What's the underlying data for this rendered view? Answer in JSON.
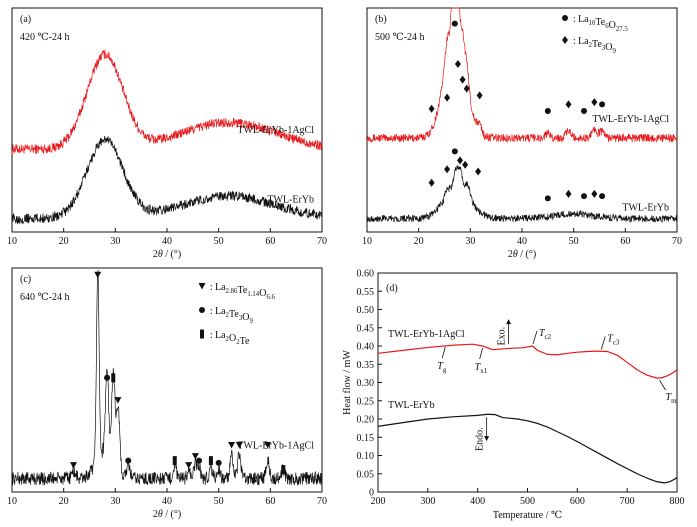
{
  "colors": {
    "red": "#e8191c",
    "black": "#111111"
  },
  "chart_data": [
    {
      "id": "a",
      "type": "line",
      "label": "(a)",
      "condition": "420 ℃-24 h",
      "xlabel_prefix": "2",
      "xlabel_theta": "θ",
      "xlabel_suffix": " / (°)",
      "xlim": [
        10,
        70
      ],
      "xticks": [
        10,
        20,
        30,
        40,
        50,
        60,
        70
      ],
      "series": [
        {
          "name": "TWL-ErYb-1AgCl",
          "color": "#e8191c",
          "baseline": 0.37,
          "noise": 0.022,
          "peaks": [
            {
              "x": 28,
              "h": 0.42,
              "w": 3.5
            },
            {
              "x": 52,
              "h": 0.12,
              "w": 9
            }
          ]
        },
        {
          "name": "TWL-ErYb",
          "color": "#111111",
          "baseline": 0.06,
          "noise": 0.022,
          "peaks": [
            {
              "x": 28,
              "h": 0.35,
              "w": 3.5
            },
            {
              "x": 52,
              "h": 0.1,
              "w": 9
            }
          ]
        }
      ]
    },
    {
      "id": "b",
      "type": "line",
      "label": "(b)",
      "condition": "500 ℃-24 h",
      "xlabel_prefix": "2",
      "xlabel_theta": "θ",
      "xlabel_suffix": " / (°)",
      "xlim": [
        10,
        70
      ],
      "xticks": [
        10,
        20,
        30,
        40,
        50,
        60,
        70
      ],
      "legend": [
        {
          "marker": "circle",
          "text": "La10Te6O27.5",
          "main": "La",
          "sub1": "10",
          "mid": "Te",
          "sub2": "6",
          "end": "O",
          "sub3": "27.5"
        },
        {
          "marker": "diamond",
          "text": "La2Te3O9",
          "main": "La",
          "sub1": "2",
          "mid": "Te",
          "sub2": "3",
          "end": "O",
          "sub3": "9"
        }
      ],
      "series": [
        {
          "name": "TWL-ErYb-1AgCl",
          "color": "#e8191c",
          "baseline": 0.42,
          "noise": 0.018,
          "peaks": [
            {
              "x": 27,
              "h": 0.5,
              "w": 2
            },
            {
              "x": 26.8,
              "h": 0.52,
              "w": 0.3
            },
            {
              "x": 27.6,
              "h": 0.2,
              "w": 0.3
            },
            {
              "x": 28.5,
              "h": 0.1,
              "w": 0.3
            },
            {
              "x": 29.3,
              "h": 0.08,
              "w": 0.4
            },
            {
              "x": 25.5,
              "h": 0.06,
              "w": 0.4
            },
            {
              "x": 31.8,
              "h": 0.04,
              "w": 0.4
            },
            {
              "x": 45,
              "h": 0.02,
              "w": 0.5
            },
            {
              "x": 49,
              "h": 0.03,
              "w": 0.5
            },
            {
              "x": 54,
              "h": 0.04,
              "w": 0.5
            },
            {
              "x": 55.5,
              "h": 0.03,
              "w": 0.5
            }
          ]
        },
        {
          "name": "TWL-ErYb",
          "color": "#111111",
          "baseline": 0.06,
          "noise": 0.016,
          "peaks": [
            {
              "x": 27.5,
              "h": 0.14,
              "w": 2.5
            },
            {
              "x": 27.3,
              "h": 0.08,
              "w": 0.5
            },
            {
              "x": 28.2,
              "h": 0.06,
              "w": 0.4
            },
            {
              "x": 29.5,
              "h": 0.05,
              "w": 0.4
            },
            {
              "x": 25.5,
              "h": 0.03,
              "w": 0.4
            },
            {
              "x": 50,
              "h": 0.02,
              "w": 4
            }
          ]
        }
      ],
      "annotations": [
        {
          "marker": "circle",
          "x": 27,
          "y": 0.93
        },
        {
          "marker": "diamond",
          "x": 27.6,
          "y": 0.75
        },
        {
          "marker": "diamond",
          "x": 28.5,
          "y": 0.68
        },
        {
          "marker": "diamond",
          "x": 29.3,
          "y": 0.64
        },
        {
          "marker": "diamond",
          "x": 31.8,
          "y": 0.61
        },
        {
          "marker": "diamond",
          "x": 25.5,
          "y": 0.6
        },
        {
          "marker": "diamond",
          "x": 22.5,
          "y": 0.55
        },
        {
          "marker": "circle",
          "x": 45,
          "y": 0.54
        },
        {
          "marker": "diamond",
          "x": 49,
          "y": 0.57
        },
        {
          "marker": "circle",
          "x": 52,
          "y": 0.54
        },
        {
          "marker": "diamond",
          "x": 54,
          "y": 0.58
        },
        {
          "marker": "circle",
          "x": 55.5,
          "y": 0.57
        },
        {
          "marker": "circle",
          "x": 27,
          "y": 0.36
        },
        {
          "marker": "diamond",
          "x": 28,
          "y": 0.32
        },
        {
          "marker": "diamond",
          "x": 29,
          "y": 0.3
        },
        {
          "marker": "diamond",
          "x": 31.5,
          "y": 0.27
        },
        {
          "marker": "diamond",
          "x": 25.5,
          "y": 0.28
        },
        {
          "marker": "diamond",
          "x": 22.5,
          "y": 0.22
        },
        {
          "marker": "circle",
          "x": 45,
          "y": 0.15
        },
        {
          "marker": "diamond",
          "x": 49,
          "y": 0.17
        },
        {
          "marker": "circle",
          "x": 52,
          "y": 0.16
        },
        {
          "marker": "diamond",
          "x": 54,
          "y": 0.17
        },
        {
          "marker": "circle",
          "x": 55.5,
          "y": 0.16
        }
      ]
    },
    {
      "id": "c",
      "type": "line",
      "label": "(c)",
      "condition": "640 ℃-24 h",
      "xlabel_prefix": "2",
      "xlabel_theta": "θ",
      "xlabel_suffix": " / (°)",
      "xlim": [
        10,
        70
      ],
      "xticks": [
        10,
        20,
        30,
        40,
        50,
        60,
        70
      ],
      "legend": [
        {
          "marker": "triangle",
          "text": "La2.86Te1.14O6.6",
          "main": "La",
          "sub1": "2.86",
          "mid": "Te",
          "sub2": "1.14",
          "end": "O",
          "sub3": "6.6"
        },
        {
          "marker": "circle",
          "text": "La2Te3O9",
          "main": "La",
          "sub1": "2",
          "mid": "Te",
          "sub2": "3",
          "end": "O",
          "sub3": "9"
        },
        {
          "marker": "rect",
          "text": "La2O2Te",
          "main": "La",
          "sub1": "2",
          "mid": "O",
          "sub2": "2",
          "end": "Te",
          "sub3": ""
        }
      ],
      "series": [
        {
          "name": "TWL-ErYb-1AgCl",
          "color": "#111111",
          "baseline": 0.06,
          "noise": 0.03,
          "peaks": [
            {
              "x": 26.6,
              "h": 0.85,
              "w": 0.25
            },
            {
              "x": 28.4,
              "h": 0.38,
              "w": 0.3
            },
            {
              "x": 29.6,
              "h": 0.42,
              "w": 0.3
            },
            {
              "x": 30.5,
              "h": 0.3,
              "w": 0.35
            },
            {
              "x": 32.5,
              "h": 0.05,
              "w": 0.4
            },
            {
              "x": 21.9,
              "h": 0.03,
              "w": 0.4
            },
            {
              "x": 41.5,
              "h": 0.06,
              "w": 0.3
            },
            {
              "x": 44.2,
              "h": 0.04,
              "w": 0.3
            },
            {
              "x": 45.5,
              "h": 0.06,
              "w": 0.3
            },
            {
              "x": 46.2,
              "h": 0.05,
              "w": 0.3
            },
            {
              "x": 48.5,
              "h": 0.05,
              "w": 0.3
            },
            {
              "x": 50,
              "h": 0.04,
              "w": 0.3
            },
            {
              "x": 52.5,
              "h": 0.1,
              "w": 0.3
            },
            {
              "x": 54,
              "h": 0.11,
              "w": 0.3
            },
            {
              "x": 59.5,
              "h": 0.09,
              "w": 0.3
            },
            {
              "x": 62.5,
              "h": 0.04,
              "w": 0.3
            },
            {
              "x": 27.8,
              "h": 0.12,
              "w": 1.5
            }
          ]
        }
      ],
      "annotations": [
        {
          "marker": "triangle",
          "x": 26.6,
          "y": 0.97
        },
        {
          "marker": "circle",
          "x": 28.4,
          "y": 0.51
        },
        {
          "marker": "rect",
          "x": 29.6,
          "y": 0.51
        },
        {
          "marker": "triangle",
          "x": 30.5,
          "y": 0.41
        },
        {
          "marker": "triangle",
          "x": 21.9,
          "y": 0.12
        },
        {
          "marker": "circle",
          "x": 32.5,
          "y": 0.14
        },
        {
          "marker": "rect",
          "x": 41.5,
          "y": 0.14
        },
        {
          "marker": "triangle",
          "x": 44.2,
          "y": 0.12
        },
        {
          "marker": "triangle",
          "x": 45.5,
          "y": 0.16
        },
        {
          "marker": "circle",
          "x": 46.2,
          "y": 0.14
        },
        {
          "marker": "rect",
          "x": 48.5,
          "y": 0.14
        },
        {
          "marker": "circle",
          "x": 50,
          "y": 0.13
        },
        {
          "marker": "triangle",
          "x": 52.5,
          "y": 0.21
        },
        {
          "marker": "triangle",
          "x": 54,
          "y": 0.21
        },
        {
          "marker": "triangle",
          "x": 59.5,
          "y": 0.21
        },
        {
          "marker": "rect",
          "x": 62.5,
          "y": 0.1
        }
      ]
    },
    {
      "id": "d",
      "type": "line",
      "label": "(d)",
      "xlabel": "Temperature / ℃",
      "ylabel": "Heat flow / mW",
      "xlim": [
        200,
        800
      ],
      "ylim": [
        0,
        0.6
      ],
      "xticks": [
        200,
        300,
        400,
        500,
        600,
        700,
        800
      ],
      "yticks": [
        0,
        0.05,
        0.1,
        0.15,
        0.2,
        0.25,
        0.3,
        0.35,
        0.4,
        0.45,
        0.5,
        0.55,
        0.6
      ],
      "ytick_labels": [
        "0",
        "0.05",
        "0.10",
        "0.15",
        "0.20",
        "0.25",
        "0.30",
        "0.35",
        "0.40",
        "0.45",
        "0.50",
        "0.55",
        "0.60"
      ],
      "series": [
        {
          "name": "TWL-ErYb-1AgCl",
          "color": "#e8191c",
          "x": [
            200,
            250,
            300,
            350,
            390,
            410,
            430,
            450,
            470,
            490,
            510,
            520,
            540,
            560,
            580,
            600,
            620,
            640,
            660,
            680,
            700,
            720,
            740,
            760,
            770,
            780,
            790,
            800
          ],
          "y": [
            0.38,
            0.388,
            0.396,
            0.402,
            0.405,
            0.4,
            0.39,
            0.392,
            0.394,
            0.395,
            0.4,
            0.388,
            0.377,
            0.376,
            0.38,
            0.383,
            0.385,
            0.386,
            0.385,
            0.375,
            0.355,
            0.335,
            0.32,
            0.312,
            0.313,
            0.318,
            0.325,
            0.335
          ]
        },
        {
          "name": "TWL-ErYb",
          "color": "#111111",
          "x": [
            200,
            250,
            300,
            350,
            400,
            420,
            435,
            450,
            480,
            500,
            520,
            540,
            560,
            580,
            600,
            620,
            640,
            660,
            680,
            700,
            720,
            740,
            760,
            775,
            785,
            795,
            800
          ],
          "y": [
            0.18,
            0.19,
            0.2,
            0.206,
            0.21,
            0.213,
            0.212,
            0.204,
            0.2,
            0.195,
            0.188,
            0.178,
            0.165,
            0.152,
            0.138,
            0.123,
            0.108,
            0.093,
            0.078,
            0.064,
            0.05,
            0.038,
            0.028,
            0.025,
            0.028,
            0.035,
            0.04
          ]
        }
      ],
      "annotations": [
        {
          "text": "Tg",
          "t": "T",
          "sub": "g",
          "x": 335,
          "y": 0.403
        },
        {
          "text": "Tx1",
          "t": "T",
          "sub": "x1",
          "x": 410,
          "y": 0.4
        },
        {
          "text": "Tc2",
          "t": "T",
          "sub": "c2",
          "x": 511,
          "y": 0.4
        },
        {
          "text": "Tc3",
          "t": "T",
          "sub": "c3",
          "x": 648,
          "y": 0.385
        },
        {
          "text": "Tm",
          "t": "T",
          "sub": "m",
          "x": 765,
          "y": 0.312
        }
      ],
      "exo_label": "Exo.",
      "endo_label": "Endo."
    }
  ]
}
